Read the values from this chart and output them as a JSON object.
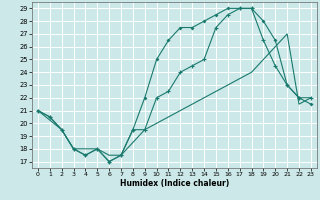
{
  "xlabel": "Humidex (Indice chaleur)",
  "xlim": [
    -0.5,
    23.5
  ],
  "ylim": [
    16.5,
    29.5
  ],
  "xticks": [
    0,
    1,
    2,
    3,
    4,
    5,
    6,
    7,
    8,
    9,
    10,
    11,
    12,
    13,
    14,
    15,
    16,
    17,
    18,
    19,
    20,
    21,
    22,
    23
  ],
  "yticks": [
    17,
    18,
    19,
    20,
    21,
    22,
    23,
    24,
    25,
    26,
    27,
    28,
    29
  ],
  "bg_color": "#cce8e8",
  "grid_color": "#ffffff",
  "line_color": "#1a7a6e",
  "line1_x": [
    0,
    1,
    2,
    3,
    4,
    5,
    6,
    7,
    8,
    9,
    10,
    11,
    12,
    13,
    14,
    15,
    16,
    17,
    18,
    19,
    20,
    21,
    22,
    23
  ],
  "line1_y": [
    21,
    20.5,
    19.5,
    18,
    17.5,
    18,
    17,
    17.5,
    19.5,
    22,
    25,
    26.5,
    27.5,
    27.5,
    28,
    28.5,
    29,
    29,
    29,
    28,
    26.5,
    23,
    22,
    21.5
  ],
  "line2_x": [
    0,
    1,
    2,
    3,
    4,
    5,
    6,
    7,
    8,
    9,
    10,
    11,
    12,
    13,
    14,
    15,
    16,
    17,
    18,
    19,
    20,
    21,
    22,
    23
  ],
  "line2_y": [
    21,
    20.5,
    19.5,
    18,
    17.5,
    18,
    17,
    17.5,
    19.5,
    19.5,
    22,
    22.5,
    24,
    24.5,
    25,
    27.5,
    28.5,
    29,
    29,
    26.5,
    24.5,
    23,
    22,
    22
  ],
  "line3_x": [
    0,
    2,
    3,
    4,
    5,
    6,
    7,
    8,
    9,
    10,
    11,
    12,
    13,
    14,
    15,
    16,
    17,
    18,
    19,
    20,
    21,
    22,
    23
  ],
  "line3_y": [
    21,
    19.5,
    18,
    18,
    18,
    17.5,
    17.5,
    18.5,
    19.5,
    20,
    20.5,
    21,
    21.5,
    22,
    22.5,
    23,
    23.5,
    24,
    25,
    26,
    27,
    21.5,
    22
  ]
}
